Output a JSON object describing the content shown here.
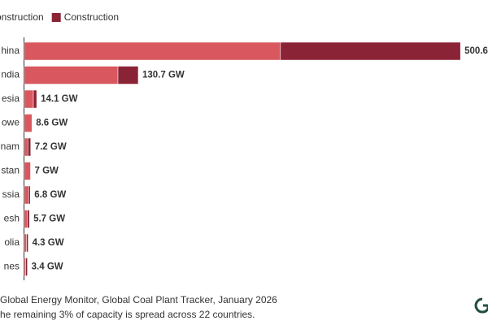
{
  "chart_data": {
    "type": "stacked-bar-horizontal",
    "categories": [
      "hina",
      "ndia",
      "esia",
      "owe",
      "nam",
      "stan",
      "ssia",
      "esh",
      "olia",
      "nes"
    ],
    "series": [
      {
        "name": "onstruction",
        "color": "#d9585f",
        "values": [
          294,
          107.4,
          10.3,
          8.6,
          4,
          7,
          5,
          3.5,
          2.5,
          1.4
        ]
      },
      {
        "name": "Construction",
        "color": "#8b2336",
        "values": [
          206.6,
          23.3,
          3.8,
          0,
          3.2,
          0,
          1.8,
          2.2,
          1.8,
          2.0
        ]
      }
    ],
    "totals": [
      500.6,
      {
        "value": 130.7,
        "label": "130.7 GW"
      },
      {
        "value": 14.1,
        "label": "14.1 GW"
      },
      {
        "value": 8.6,
        "label": "8.6 GW"
      },
      {
        "value": 7.2,
        "label": "7.2 GW"
      },
      {
        "value": 7,
        "label": "7 GW"
      },
      {
        "value": 6.8,
        "label": "6.8 GW"
      },
      {
        "value": 5.7,
        "label": "5.7 GW"
      },
      {
        "value": 4.3,
        "label": "4.3 GW"
      },
      {
        "value": 3.4,
        "label": "3.4 GW"
      }
    ],
    "source": "Global Energy Monitor, Global Coal Plant Tracker, January 2026",
    "note": "he remaining 3% of capacity is spread across 22 countries."
  }
}
